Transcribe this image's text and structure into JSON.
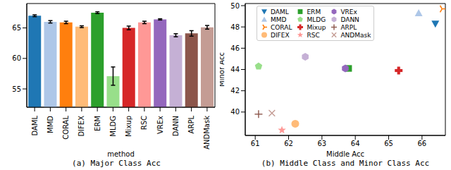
{
  "chart_data": [
    {
      "type": "bar",
      "title": "(a) Major Class Acc",
      "x_label": "method",
      "categories": [
        "DAML",
        "MMD",
        "CORAL",
        "DIFEX",
        "ERM",
        "MLDG",
        "Mixup",
        "RSC",
        "VREx",
        "DANN",
        "ARPL",
        "ANDMask"
      ],
      "values": [
        67.0,
        66.0,
        65.9,
        65.2,
        67.5,
        57.1,
        65.0,
        65.9,
        66.4,
        63.8,
        64.1,
        65.1
      ],
      "errors": [
        0.15,
        0.2,
        0.2,
        0.15,
        0.15,
        1.5,
        0.3,
        0.2,
        0.1,
        0.25,
        0.45,
        0.3
      ],
      "colors": [
        "#1f77b4",
        "#aec7e8",
        "#ff7f0e",
        "#ffbb78",
        "#2ca02c",
        "#98df8a",
        "#d62728",
        "#ff9896",
        "#9467bd",
        "#c5b0d5",
        "#8c564b",
        "#c49c94"
      ],
      "ylim": [
        52,
        69
      ],
      "yticks": [
        55,
        60,
        65
      ],
      "grid": false
    },
    {
      "type": "scatter",
      "title": "(b) Middle Class and Minor Class Acc",
      "x_label": "Middle Acc",
      "y_label": "Minor Acc",
      "series": [
        {
          "name": "DAML",
          "color": "#1f77b4",
          "marker": "triangle_down",
          "x": [
            66.4
          ],
          "values": [
            48.3
          ]
        },
        {
          "name": "MMD",
          "color": "#aec7e8",
          "marker": "triangle_up",
          "x": [
            65.9
          ],
          "values": [
            49.3
          ]
        },
        {
          "name": "CORAL",
          "color": "#ff7f0e",
          "marker": "tri_right",
          "x": [
            66.6
          ],
          "values": [
            49.7
          ]
        },
        {
          "name": "DIFEX",
          "color": "#ffbb78",
          "marker": "circle",
          "x": [
            62.2
          ],
          "values": [
            38.9
          ]
        },
        {
          "name": "ERM",
          "color": "#2ca02c",
          "marker": "square",
          "x": [
            63.8
          ],
          "values": [
            44.1
          ]
        },
        {
          "name": "MLDG",
          "color": "#98df8a",
          "marker": "pentagon",
          "x": [
            61.1
          ],
          "values": [
            44.3
          ]
        },
        {
          "name": "Mixup",
          "color": "#d62728",
          "marker": "plus_filled",
          "x": [
            65.3
          ],
          "values": [
            43.9
          ]
        },
        {
          "name": "RSC",
          "color": "#ff9896",
          "marker": "star",
          "x": [
            61.8
          ],
          "values": [
            38.3
          ]
        },
        {
          "name": "VREx",
          "color": "#9467bd",
          "marker": "hexagon",
          "x": [
            63.7
          ],
          "values": [
            44.1
          ]
        },
        {
          "name": "DANN",
          "color": "#c5b0d5",
          "marker": "hexagon",
          "x": [
            62.5
          ],
          "values": [
            45.2
          ]
        },
        {
          "name": "ARPL",
          "color": "#8c564b",
          "marker": "plus",
          "x": [
            61.1
          ],
          "values": [
            39.8
          ]
        },
        {
          "name": "ANDMask",
          "color": "#c49c94",
          "marker": "x",
          "x": [
            61.5
          ],
          "values": [
            39.9
          ]
        }
      ],
      "xlim": [
        60.7,
        66.7
      ],
      "xticks": [
        61,
        62,
        63,
        64,
        65,
        66
      ],
      "ylim": [
        37.8,
        50.2
      ],
      "yticks": [
        40,
        42,
        44,
        46,
        48,
        50
      ],
      "legend": "upper left",
      "grid": false
    }
  ]
}
